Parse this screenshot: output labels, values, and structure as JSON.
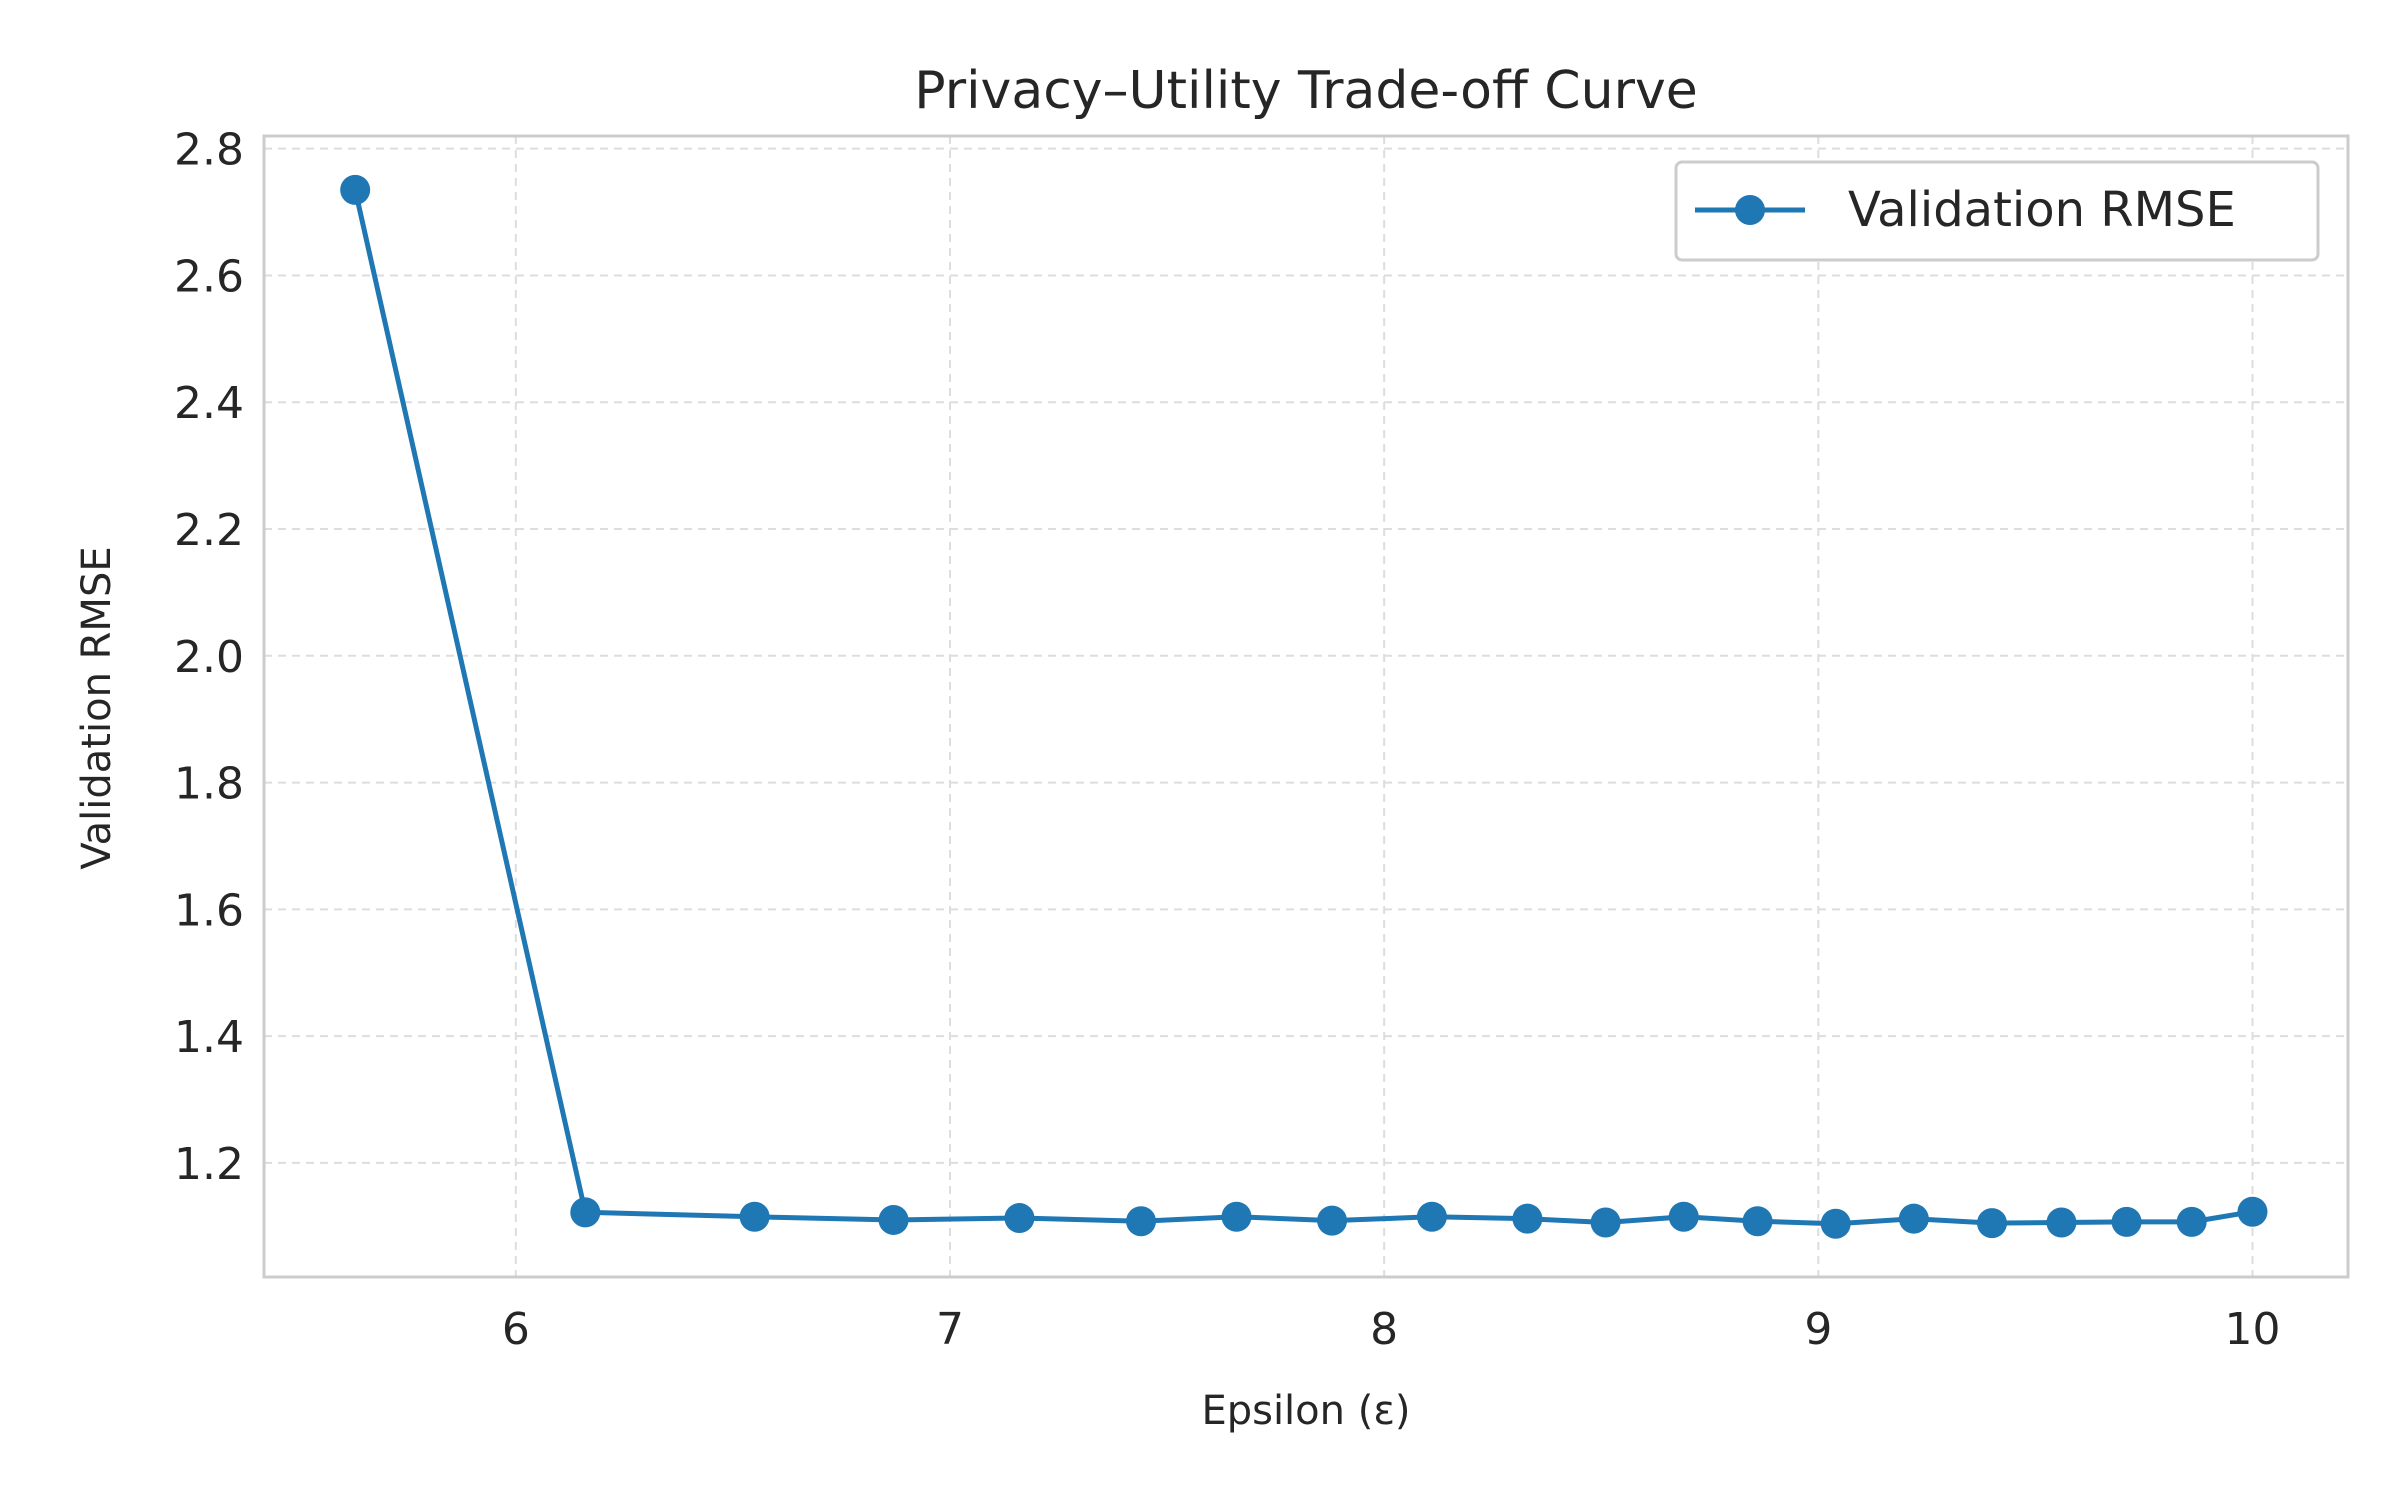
{
  "chart_data": {
    "type": "line",
    "title": "Privacy–Utility Trade-off Curve",
    "xlabel": "Epsilon (ε)",
    "ylabel": "Validation RMSE",
    "xlim": [
      5.42,
      10.22
    ],
    "ylim": [
      1.02,
      2.82
    ],
    "x_ticks": [
      6,
      7,
      8,
      9,
      10
    ],
    "y_ticks": [
      1.2,
      1.4,
      1.6,
      1.8,
      2.0,
      2.2,
      2.4,
      2.6,
      2.8
    ],
    "x_tick_labels": [
      "6",
      "7",
      "8",
      "9",
      "10"
    ],
    "y_tick_labels": [
      "1.2",
      "1.4",
      "1.6",
      "1.8",
      "2.0",
      "2.2",
      "2.4",
      "2.6",
      "2.8"
    ],
    "grid": true,
    "legend_position": "top-right",
    "series": [
      {
        "name": "Validation RMSE",
        "color": "#1f77b4",
        "x": [
          5.63,
          6.16,
          6.55,
          6.87,
          7.16,
          7.44,
          7.66,
          7.88,
          8.11,
          8.33,
          8.51,
          8.69,
          8.86,
          9.04,
          9.22,
          9.4,
          9.56,
          9.71,
          9.86,
          10.0
        ],
        "y": [
          2.735,
          1.122,
          1.115,
          1.11,
          1.113,
          1.108,
          1.115,
          1.109,
          1.115,
          1.112,
          1.106,
          1.115,
          1.108,
          1.104,
          1.112,
          1.105,
          1.106,
          1.107,
          1.107,
          1.123
        ]
      }
    ]
  }
}
